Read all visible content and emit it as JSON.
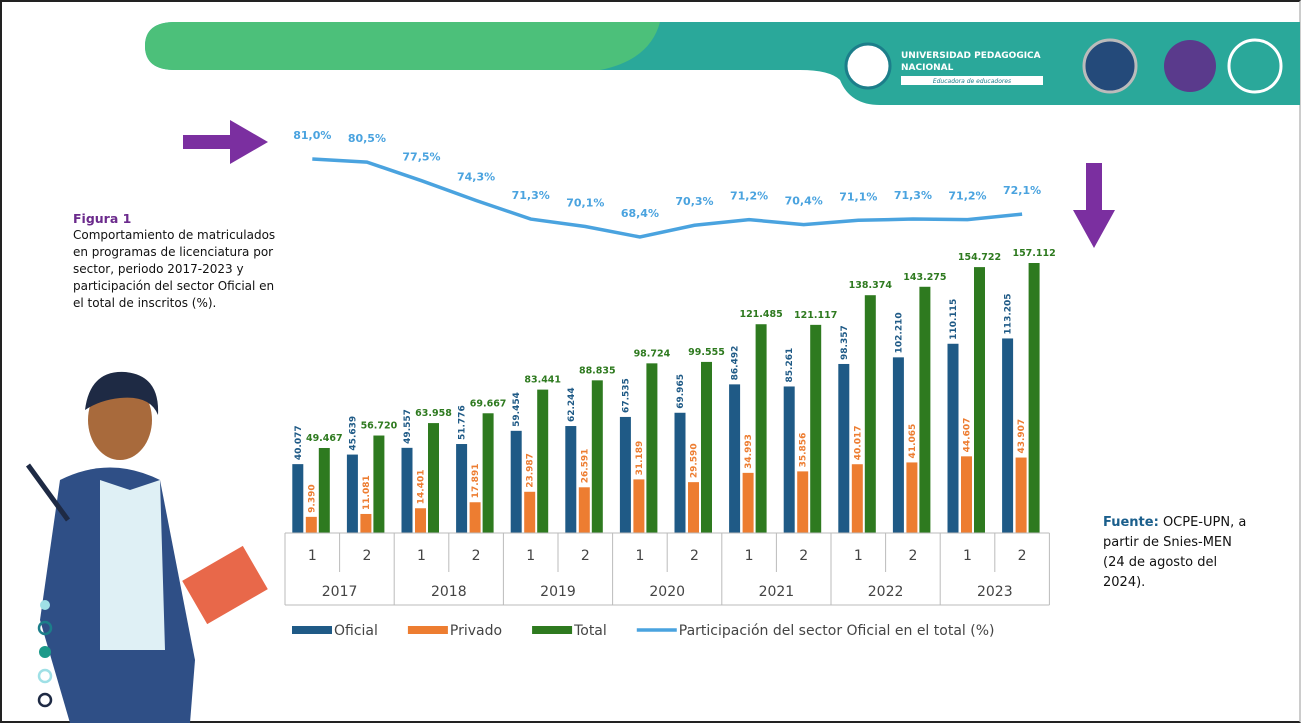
{
  "header": {
    "university": [
      "UNIVERSIDAD PEDAGOGICA",
      "NACIONAL"
    ],
    "motto": "Educadora de educadores"
  },
  "figure_label": "Figura 1",
  "caption": "Comportamiento de matriculados en programas de licenciatura por sector, periodo 2017-2023 y participación del sector Oficial en el total de inscritos (%).",
  "source_label": "Fuente:",
  "source_text": "OCPE-UPN, a partir de Snies-MEN (24 de agosto del 2024).",
  "chart_data": {
    "type": "bar",
    "categories": [
      "1",
      "2",
      "1",
      "2",
      "1",
      "2",
      "1",
      "2",
      "1",
      "2",
      "1",
      "2",
      "1",
      "2"
    ],
    "groups": [
      "2017",
      "2018",
      "2019",
      "2020",
      "2021",
      "2022",
      "2023"
    ],
    "series": [
      {
        "name": "Oficial",
        "color": "#1f5a86",
        "values": [
          40077,
          45639,
          49557,
          51776,
          59454,
          62244,
          67535,
          69965,
          86492,
          85261,
          98357,
          102210,
          110115,
          113205
        ],
        "value_labels": [
          "40.077",
          "45.639",
          "49.557",
          "51.776",
          "59.454",
          "62.244",
          "67.535",
          "69.965",
          "86.492",
          "85.261",
          "98.357",
          "102.210",
          "110.115",
          "113.205"
        ]
      },
      {
        "name": "Privado",
        "color": "#ed7d31",
        "values": [
          9390,
          11081,
          14401,
          17891,
          23987,
          26591,
          31189,
          29590,
          34993,
          35856,
          40017,
          41065,
          44607,
          43907
        ],
        "value_labels": [
          "9.390",
          "11.081",
          "14.401",
          "17.891",
          "23.987",
          "26.591",
          "31.189",
          "29.590",
          "34.993",
          "35.856",
          "40.017",
          "41.065",
          "44.607",
          "43.907"
        ]
      },
      {
        "name": "Total",
        "color": "#2e7a1f",
        "values": [
          49467,
          56720,
          63958,
          69667,
          83441,
          88835,
          98724,
          99555,
          121485,
          121117,
          138374,
          143275,
          154722,
          157112
        ],
        "value_labels": [
          "49.467",
          "56.720",
          "63.958",
          "69.667",
          "83.441",
          "88.835",
          "98.724",
          "99.555",
          "121.485",
          "121.117",
          "138.374",
          "143.275",
          "154.722",
          "157.112"
        ]
      },
      {
        "name": "Participación del sector Oficial en el total (%)",
        "type": "line",
        "color": "#4aa3df",
        "values": [
          81.0,
          80.5,
          77.5,
          74.3,
          71.3,
          70.1,
          68.4,
          70.3,
          71.2,
          70.4,
          71.1,
          71.3,
          71.2,
          72.1
        ],
        "value_labels": [
          "81,0%",
          "80,5%",
          "77,5%",
          "74,3%",
          "71,3%",
          "70,1%",
          "68,4%",
          "70,3%",
          "71,2%",
          "70,4%",
          "71,1%",
          "71,3%",
          "71,2%",
          "72,1%"
        ]
      }
    ]
  }
}
